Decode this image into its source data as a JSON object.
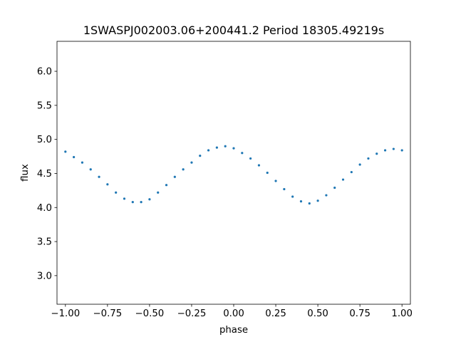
{
  "chart_data": {
    "type": "scatter",
    "title": "1SWASPJ002003.06+200441.2 Period 18305.49219s",
    "xlabel": "phase",
    "ylabel": "flux",
    "xlim": [
      -1.05,
      1.05
    ],
    "ylim": [
      2.58,
      6.44
    ],
    "x_ticks": [
      -1.0,
      -0.75,
      -0.5,
      -0.25,
      0.0,
      0.25,
      0.5,
      0.75,
      1.0
    ],
    "x_tick_labels": [
      "−1.00",
      "−0.75",
      "−0.50",
      "−0.25",
      "0.00",
      "0.25",
      "0.50",
      "0.75",
      "1.00"
    ],
    "y_ticks": [
      3.0,
      3.5,
      4.0,
      4.5,
      5.0,
      5.5,
      6.0
    ],
    "y_tick_labels": [
      "3.0",
      "3.5",
      "4.0",
      "4.5",
      "5.0",
      "5.5",
      "6.0"
    ],
    "grid": false,
    "marker_color": "#1f77b4",
    "series": [
      {
        "name": "",
        "x": [
          -1.0,
          -0.95,
          -0.9,
          -0.85,
          -0.8,
          -0.75,
          -0.7,
          -0.65,
          -0.6,
          -0.55,
          -0.5,
          -0.45,
          -0.4,
          -0.35,
          -0.3,
          -0.25,
          -0.2,
          -0.15,
          -0.1,
          -0.05,
          0.0,
          0.05,
          0.1,
          0.15,
          0.2,
          0.25,
          0.3,
          0.35,
          0.4,
          0.45,
          0.5,
          0.55,
          0.6,
          0.65,
          0.7,
          0.75,
          0.8,
          0.85,
          0.9,
          0.95,
          1.0
        ],
        "y": [
          4.82,
          4.74,
          4.66,
          4.56,
          4.45,
          4.34,
          4.22,
          4.13,
          4.08,
          4.08,
          4.12,
          4.22,
          4.33,
          4.45,
          4.56,
          4.66,
          4.76,
          4.84,
          4.88,
          4.9,
          4.87,
          4.8,
          4.72,
          4.62,
          4.51,
          4.39,
          4.27,
          4.16,
          4.09,
          4.06,
          4.1,
          4.18,
          4.29,
          4.41,
          4.52,
          4.63,
          4.72,
          4.79,
          4.84,
          4.86,
          4.84
        ]
      }
    ]
  }
}
